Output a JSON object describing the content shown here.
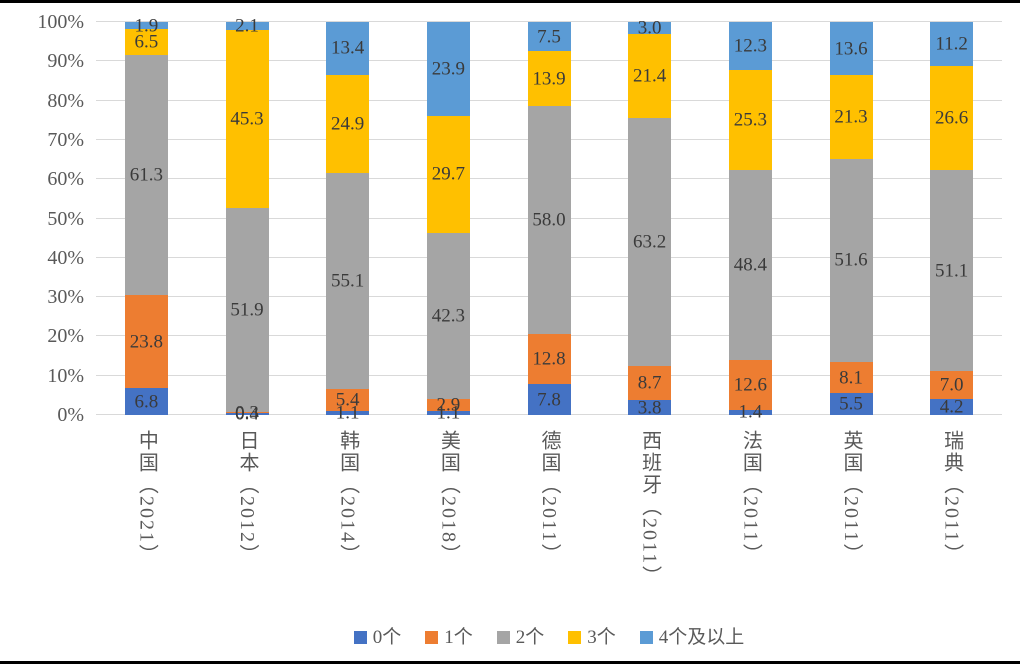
{
  "chart_data": {
    "type": "bar",
    "variant": "stacked-100-percent",
    "title": "",
    "xlabel": "",
    "ylabel": "",
    "y_axis": {
      "min": 0,
      "max": 100,
      "tick_step": 10,
      "ticks": [
        "0%",
        "10%",
        "20%",
        "30%",
        "40%",
        "50%",
        "60%",
        "70%",
        "80%",
        "90%",
        "100%"
      ],
      "grid": true
    },
    "categories": [
      "中国（2021）",
      "日本（2012）",
      "韩国（2014）",
      "美国（2018）",
      "德国（2011）",
      "西班牙（2011）",
      "法国（2011）",
      "英国（2011）",
      "瑞典（2011）"
    ],
    "series": [
      {
        "name": "0个",
        "color": "#4472C4",
        "values": [
          6.8,
          0.4,
          1.1,
          1.1,
          7.8,
          3.8,
          1.4,
          5.5,
          4.2
        ]
      },
      {
        "name": "1个",
        "color": "#ED7D31",
        "values": [
          23.8,
          0.3,
          5.4,
          2.9,
          12.8,
          8.7,
          12.6,
          8.1,
          7.0
        ]
      },
      {
        "name": "2个",
        "color": "#A5A5A5",
        "values": [
          61.3,
          51.9,
          55.1,
          42.3,
          58.0,
          63.2,
          48.4,
          51.6,
          51.1
        ]
      },
      {
        "name": "3个",
        "color": "#FFC000",
        "values": [
          6.5,
          45.3,
          24.9,
          29.7,
          13.9,
          21.4,
          25.3,
          21.3,
          26.6
        ]
      },
      {
        "name": "4个及以上",
        "color": "#5B9BD5",
        "values": [
          1.9,
          2.1,
          13.4,
          23.9,
          7.5,
          3.0,
          12.3,
          13.6,
          11.2
        ]
      }
    ],
    "legend": {
      "position": "bottom",
      "entries": [
        "0个",
        "1个",
        "2个",
        "3个",
        "4个及以上"
      ]
    },
    "style": {
      "gridline_color": "#D9D9D9",
      "axis_text_color": "#595959",
      "data_label_color": "#3A3A3A",
      "background": "#FFFFFF",
      "frame_border_color": "#000000"
    }
  }
}
